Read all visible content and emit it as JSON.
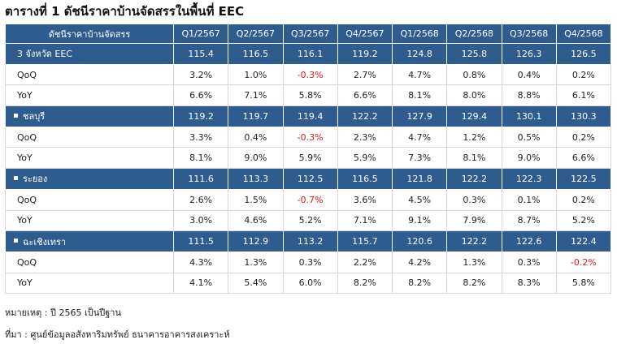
{
  "title": "ตารางที่ 1 ดัชนีราคาบ้านจัดสรรในพื้นที่ EEC",
  "table": {
    "header": [
      "ดัชนีราคาบ้านจัดสรร",
      "Q1/2567",
      "Q2/2567",
      "Q3/2567",
      "Q4/2567",
      "Q1/2568",
      "Q2/2568",
      "Q3/2568",
      "Q4/2568"
    ],
    "groups": [
      {
        "name": "3 จังหวัด EEC",
        "values": [
          "115.4",
          "116.5",
          "116.1",
          "119.2",
          "124.8",
          "125.8",
          "126.3",
          "126.5"
        ],
        "rows": [
          {
            "label": "QoQ",
            "values": [
              "3.2%",
              "1.0%",
              "-0.3%",
              "2.7%",
              "4.7%",
              "0.8%",
              "0.4%",
              "0.2%"
            ]
          },
          {
            "label": "YoY",
            "values": [
              "6.6%",
              "7.1%",
              "5.8%",
              "6.6%",
              "8.1%",
              "8.0%",
              "8.8%",
              "6.1%"
            ]
          }
        ]
      },
      {
        "name": "ชลบุรี",
        "values": [
          "119.2",
          "119.7",
          "119.4",
          "122.2",
          "127.9",
          "129.4",
          "130.1",
          "130.3"
        ],
        "rows": [
          {
            "label": "QoQ",
            "values": [
              "3.3%",
              "0.4%",
              "-0.3%",
              "2.3%",
              "4.7%",
              "1.2%",
              "0.5%",
              "0.2%"
            ]
          },
          {
            "label": "YoY",
            "values": [
              "8.1%",
              "9.0%",
              "5.9%",
              "5.9%",
              "7.3%",
              "8.1%",
              "9.0%",
              "6.6%"
            ]
          }
        ]
      },
      {
        "name": "ระยอง",
        "values": [
          "111.6",
          "113.3",
          "112.5",
          "116.5",
          "121.8",
          "122.2",
          "122.3",
          "122.5"
        ],
        "rows": [
          {
            "label": "QoQ",
            "values": [
              "2.6%",
              "1.5%",
              "-0.7%",
              "3.6%",
              "4.5%",
              "0.3%",
              "0.1%",
              "0.2%"
            ]
          },
          {
            "label": "YoY",
            "values": [
              "3.0%",
              "4.6%",
              "5.2%",
              "7.1%",
              "9.1%",
              "7.9%",
              "8.7%",
              "5.2%"
            ]
          }
        ]
      },
      {
        "name": "ฉะเชิงเทรา",
        "values": [
          "111.5",
          "112.9",
          "113.2",
          "115.7",
          "120.6",
          "122.2",
          "122.6",
          "122.4"
        ],
        "rows": [
          {
            "label": "QoQ",
            "values": [
              "4.3%",
              "1.3%",
              "0.3%",
              "2.2%",
              "4.2%",
              "1.3%",
              "0.3%",
              "-0.2%"
            ]
          },
          {
            "label": "YoY",
            "values": [
              "4.1%",
              "5.4%",
              "6.0%",
              "8.2%",
              "8.2%",
              "8.2%",
              "8.3%",
              "5.8%"
            ]
          }
        ]
      }
    ]
  },
  "notes": [
    "หมายเหตุ : ปี 2565 เป็นปีฐาน",
    "ที่มา : ศูนย์ข้อมูลอสังหาริมทรัพย์ ธนาคารอาคารสงเคราะห์"
  ]
}
